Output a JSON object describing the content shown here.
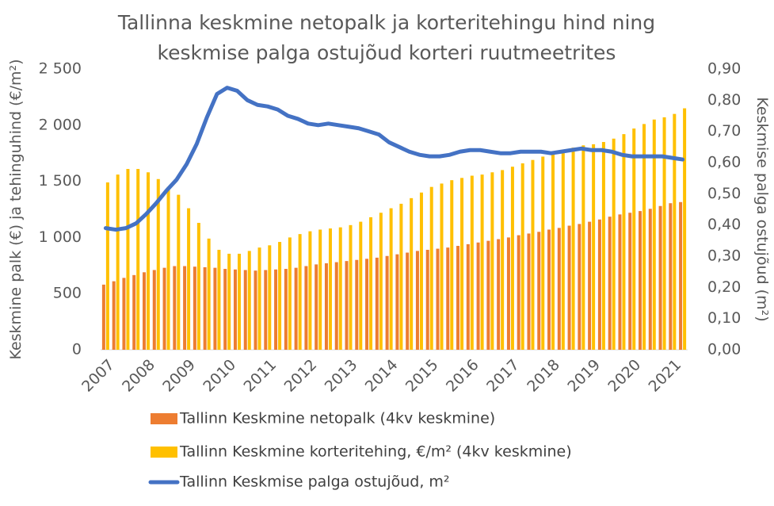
{
  "chart_data": {
    "type": "bar_line",
    "title": "Tallinna keskmine netopalk ja korteritehingu hind ning keskmise palga ostujõud korteri ruutmeetrites",
    "ylabel": "Keskmine palk (€) ja tehinguhind (€/m²)",
    "y2label": "Keskmise palga ostujõud (m²)",
    "categories": [
      "2007",
      null,
      null,
      null,
      "2008",
      null,
      null,
      null,
      "2009",
      null,
      null,
      null,
      "2010",
      null,
      null,
      null,
      "2011",
      null,
      null,
      null,
      "2012",
      null,
      null,
      null,
      "2013",
      null,
      null,
      null,
      "2014",
      null,
      null,
      null,
      "2015",
      null,
      null,
      null,
      "2016",
      null,
      null,
      null,
      "2017",
      null,
      null,
      null,
      "2018",
      null,
      null,
      null,
      "2019",
      null,
      null,
      null,
      "2020",
      null,
      null,
      null,
      "2021",
      null
    ],
    "series": [
      {
        "name": "Tallinn Keskmine netopalk (4kv keskmine)",
        "type": "bar",
        "color": "#ed7d31",
        "values": [
          580,
          610,
          640,
          665,
          690,
          710,
          730,
          745,
          745,
          740,
          735,
          730,
          720,
          715,
          710,
          705,
          710,
          715,
          720,
          730,
          745,
          760,
          770,
          780,
          790,
          800,
          810,
          820,
          835,
          850,
          865,
          880,
          890,
          900,
          910,
          925,
          940,
          955,
          970,
          985,
          1000,
          1020,
          1035,
          1050,
          1070,
          1085,
          1105,
          1120,
          1140,
          1160,
          1185,
          1205,
          1220,
          1235,
          1255,
          1280,
          1305,
          1315
        ]
      },
      {
        "name": "Tallinn Keskmine korteritehing, €/m² (4kv keskmine)",
        "type": "bar",
        "color": "#ffc000",
        "values": [
          1490,
          1560,
          1610,
          1610,
          1580,
          1520,
          1450,
          1380,
          1260,
          1130,
          990,
          890,
          855,
          855,
          880,
          910,
          930,
          960,
          1000,
          1030,
          1055,
          1070,
          1080,
          1090,
          1110,
          1140,
          1180,
          1220,
          1260,
          1300,
          1350,
          1400,
          1450,
          1480,
          1510,
          1530,
          1550,
          1560,
          1580,
          1600,
          1630,
          1660,
          1690,
          1720,
          1750,
          1780,
          1800,
          1820,
          1830,
          1850,
          1880,
          1920,
          1970,
          2010,
          2050,
          2070,
          2100,
          2150
        ]
      },
      {
        "name": "Tallinn Keskmise palga ostujõud, m²",
        "type": "line",
        "axis": "y2",
        "color": "#4472c4",
        "values": [
          0.39,
          0.385,
          0.39,
          0.405,
          0.435,
          0.47,
          0.51,
          0.545,
          0.595,
          0.66,
          0.745,
          0.82,
          0.84,
          0.83,
          0.8,
          0.785,
          0.78,
          0.77,
          0.75,
          0.74,
          0.725,
          0.72,
          0.725,
          0.72,
          0.715,
          0.71,
          0.7,
          0.69,
          0.665,
          0.65,
          0.635,
          0.625,
          0.62,
          0.62,
          0.625,
          0.635,
          0.64,
          0.64,
          0.635,
          0.63,
          0.63,
          0.635,
          0.635,
          0.635,
          0.63,
          0.635,
          0.64,
          0.645,
          0.64,
          0.64,
          0.635,
          0.625,
          0.62,
          0.62,
          0.62,
          0.62,
          0.615,
          0.61
        ]
      }
    ],
    "ylim": [
      0,
      2500
    ],
    "yticks": [
      0,
      500,
      {
        "value": 1000,
        "label": "1 000"
      },
      {
        "value": 1500,
        "label": "1 500"
      },
      {
        "value": 2000,
        "label": "2 000"
      },
      {
        "value": 2500,
        "label": "2 500"
      }
    ],
    "y2lim": [
      0,
      0.9
    ],
    "y2ticks": [
      {
        "value": 0,
        "label": "0,00"
      },
      {
        "value": 0.1,
        "label": "0,10"
      },
      {
        "value": 0.2,
        "label": "0,20"
      },
      {
        "value": 0.3,
        "label": "0,30"
      },
      {
        "value": 0.4,
        "label": "0,40"
      },
      {
        "value": 0.5,
        "label": "0,50"
      },
      {
        "value": 0.6,
        "label": "0,60"
      },
      {
        "value": 0.7,
        "label": "0,70"
      },
      {
        "value": 0.8,
        "label": "0,80"
      },
      {
        "value": 0.9,
        "label": "0,90"
      }
    ],
    "grid": false,
    "legend": "bottom"
  }
}
